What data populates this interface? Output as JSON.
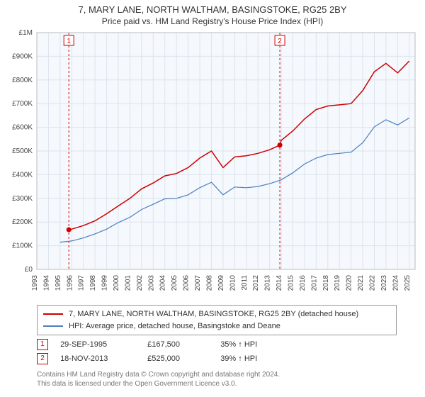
{
  "title": "7, MARY LANE, NORTH WALTHAM, BASINGSTOKE, RG25 2BY",
  "subtitle": "Price paid vs. HM Land Registry's House Price Index (HPI)",
  "chart": {
    "type": "line",
    "plot_bg": "#f5f8fc",
    "grid_color": "#dde4ee",
    "x_years": [
      1993,
      1994,
      1995,
      1996,
      1997,
      1998,
      1999,
      2000,
      2001,
      2002,
      2003,
      2004,
      2005,
      2006,
      2007,
      2008,
      2009,
      2010,
      2011,
      2012,
      2013,
      2014,
      2015,
      2016,
      2017,
      2018,
      2019,
      2020,
      2021,
      2022,
      2023,
      2024,
      2025
    ],
    "y_ticks": [
      0,
      100000,
      200000,
      300000,
      400000,
      500000,
      600000,
      700000,
      800000,
      900000,
      1000000
    ],
    "y_tick_labels": [
      "£0",
      "£100K",
      "£200K",
      "£300K",
      "£400K",
      "£500K",
      "£600K",
      "£700K",
      "£800K",
      "£900K",
      "£1M"
    ],
    "xlim": [
      1993,
      2025.5
    ],
    "ylim": [
      0,
      1000000
    ],
    "series": [
      {
        "name": "property",
        "label": "7, MARY LANE, NORTH WALTHAM, BASINGSTOKE, RG25 2BY (detached house)",
        "color": "#cc0000",
        "width": 1.5,
        "x": [
          1995.75,
          1996,
          1997,
          1998,
          1999,
          2000,
          2001,
          2002,
          2003,
          2004,
          2005,
          2006,
          2007,
          2008,
          2009,
          2010,
          2011,
          2012,
          2013,
          2013.88,
          2014,
          2015,
          2016,
          2017,
          2018,
          2019,
          2020,
          2021,
          2022,
          2023,
          2024,
          2025
        ],
        "y": [
          167500,
          170000,
          185000,
          205000,
          235000,
          268000,
          300000,
          340000,
          365000,
          395000,
          405000,
          430000,
          470000,
          500000,
          430000,
          475000,
          480000,
          490000,
          505000,
          525000,
          545000,
          585000,
          635000,
          675000,
          690000,
          695000,
          700000,
          755000,
          835000,
          870000,
          830000,
          880000
        ]
      },
      {
        "name": "hpi",
        "label": "HPI: Average price, detached house, Basingstoke and Deane",
        "color": "#4a7fc1",
        "width": 1.2,
        "x": [
          1995,
          1996,
          1997,
          1998,
          1999,
          2000,
          2001,
          2002,
          2003,
          2004,
          2005,
          2006,
          2007,
          2008,
          2009,
          2010,
          2011,
          2012,
          2013,
          2014,
          2015,
          2016,
          2017,
          2018,
          2019,
          2020,
          2021,
          2022,
          2023,
          2024,
          2025
        ],
        "y": [
          115000,
          120000,
          133000,
          150000,
          170000,
          198000,
          220000,
          253000,
          275000,
          298000,
          300000,
          315000,
          345000,
          368000,
          315000,
          348000,
          345000,
          350000,
          362000,
          378000,
          408000,
          445000,
          470000,
          485000,
          490000,
          495000,
          535000,
          602000,
          632000,
          610000,
          640000
        ]
      }
    ],
    "sale_markers": [
      {
        "n": "1",
        "x_year": 1995.75,
        "y_val": 167500,
        "line_color": "#cc0000"
      },
      {
        "n": "2",
        "x_year": 2013.88,
        "y_val": 525000,
        "line_color": "#cc0000"
      }
    ]
  },
  "legend": {
    "items": [
      {
        "key": "property",
        "color": "#cc0000"
      },
      {
        "key": "hpi",
        "color": "#4a7fc1"
      }
    ]
  },
  "sales": [
    {
      "n": "1",
      "date": "29-SEP-1995",
      "price": "£167,500",
      "pct": "35% ↑ HPI"
    },
    {
      "n": "2",
      "date": "18-NOV-2013",
      "price": "£525,000",
      "pct": "39% ↑ HPI"
    }
  ],
  "footnote_l1": "Contains HM Land Registry data © Crown copyright and database right 2024.",
  "footnote_l2": "This data is licensed under the Open Government Licence v3.0."
}
